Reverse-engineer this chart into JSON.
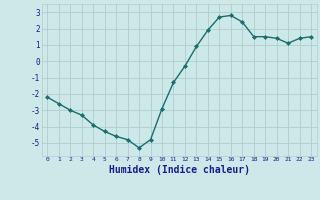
{
  "x": [
    0,
    1,
    2,
    3,
    4,
    5,
    6,
    7,
    8,
    9,
    10,
    11,
    12,
    13,
    14,
    15,
    16,
    17,
    18,
    19,
    20,
    21,
    22,
    23
  ],
  "y": [
    -2.2,
    -2.6,
    -3.0,
    -3.3,
    -3.9,
    -4.3,
    -4.6,
    -4.8,
    -5.3,
    -4.8,
    -2.9,
    -1.3,
    -0.3,
    0.9,
    1.9,
    2.7,
    2.8,
    2.4,
    1.5,
    1.5,
    1.4,
    1.1,
    1.4,
    1.5
  ],
  "line_color": "#1a6e6e",
  "marker": "D",
  "marker_size": 2.0,
  "bg_color": "#cce8e8",
  "grid_color": "#b0cccc",
  "tick_color": "#1a1a8c",
  "xlabel": "Humidex (Indice chaleur)",
  "xlabel_color": "#1a1a8c",
  "xlabel_fontsize": 7,
  "yticks": [
    -5,
    -4,
    -3,
    -2,
    -1,
    0,
    1,
    2,
    3
  ],
  "xticks": [
    0,
    1,
    2,
    3,
    4,
    5,
    6,
    7,
    8,
    9,
    10,
    11,
    12,
    13,
    14,
    15,
    16,
    17,
    18,
    19,
    20,
    21,
    22,
    23
  ],
  "ylim": [
    -5.8,
    3.5
  ],
  "xlim": [
    -0.5,
    23.5
  ]
}
